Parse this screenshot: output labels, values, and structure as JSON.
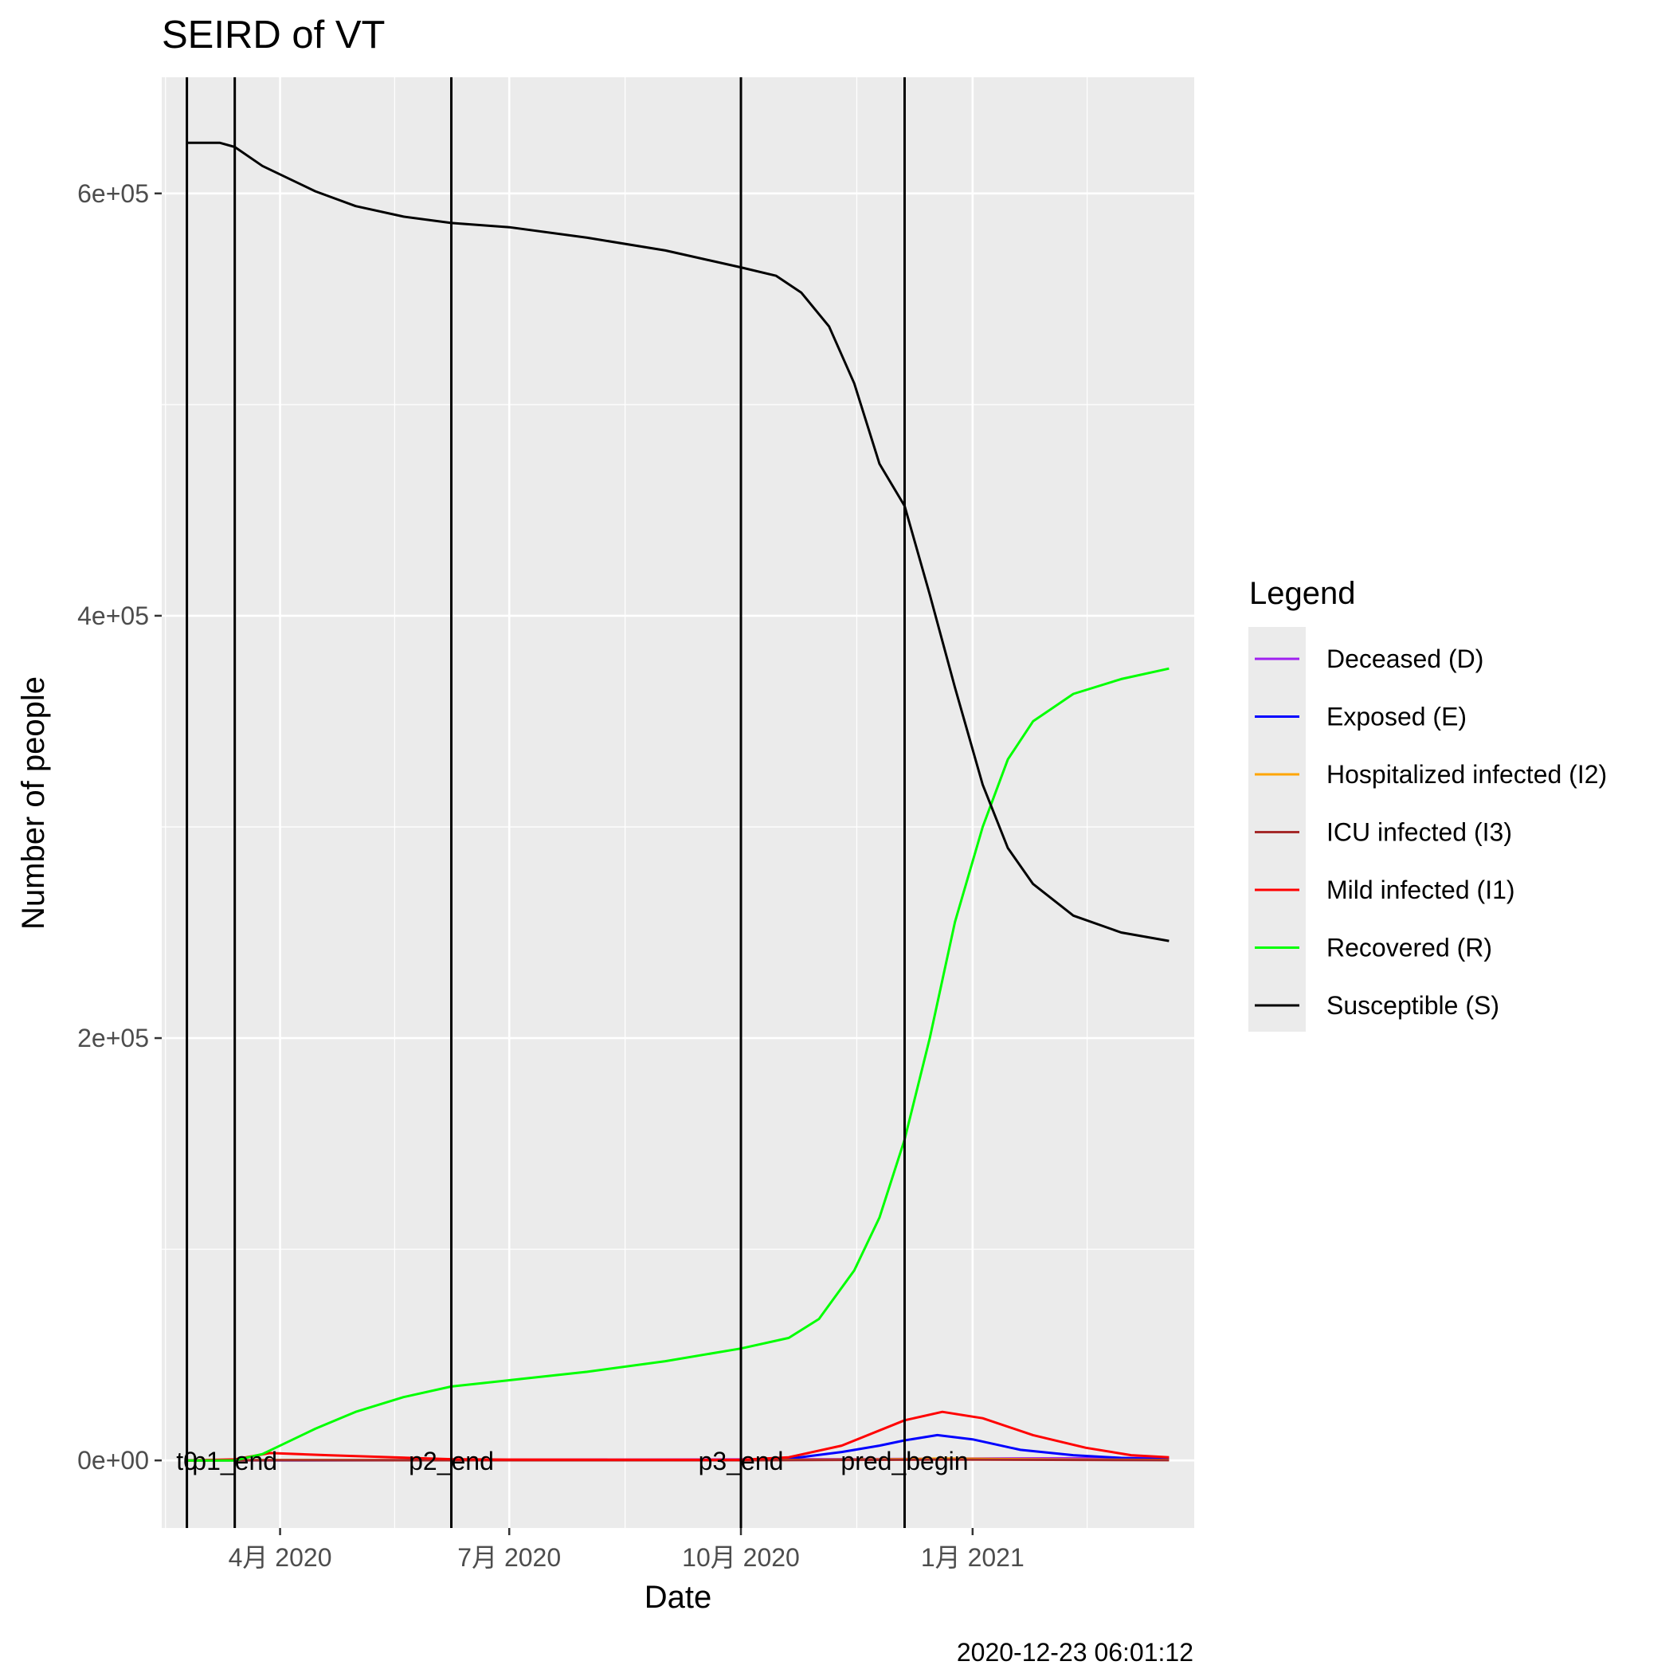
{
  "chart_data": {
    "type": "line",
    "title": "SEIRD of VT",
    "xlabel": "Date",
    "ylabel": "Number of people",
    "caption": "2020-12-23 06:01:12",
    "x_axis": {
      "type": "date",
      "range": [
        "2020-02-14",
        "2021-03-30"
      ],
      "ticks": [
        {
          "date": "2020-04-01",
          "label": "4月 2020"
        },
        {
          "date": "2020-07-01",
          "label": "7月 2020"
        },
        {
          "date": "2020-10-01",
          "label": "10月 2020"
        },
        {
          "date": "2021-01-01",
          "label": "1月 2021"
        }
      ]
    },
    "y_axis": {
      "range": [
        -32000,
        655000
      ],
      "ticks": [
        {
          "value": 0,
          "label": "0e+00"
        },
        {
          "value": 200000,
          "label": "2e+05"
        },
        {
          "value": 400000,
          "label": "4e+05"
        },
        {
          "value": 600000,
          "label": "6e+05"
        }
      ]
    },
    "grid": true,
    "legend": {
      "title": "Legend",
      "position": "right"
    },
    "vlines": [
      {
        "date": "2020-02-24",
        "label": "t0"
      },
      {
        "date": "2020-03-14",
        "label": "p1_end"
      },
      {
        "date": "2020-06-08",
        "label": "p2_end"
      },
      {
        "date": "2020-10-01",
        "label": "p3_end"
      },
      {
        "date": "2020-12-05",
        "label": "pred_begin"
      }
    ],
    "series": [
      {
        "name": "Deceased (D)",
        "color": "#a020f0",
        "points": [
          [
            "2020-02-24",
            0
          ],
          [
            "2020-04-01",
            100
          ],
          [
            "2020-07-01",
            300
          ],
          [
            "2020-10-01",
            500
          ],
          [
            "2020-12-05",
            700
          ],
          [
            "2021-01-01",
            900
          ],
          [
            "2021-03-20",
            1200
          ]
        ]
      },
      {
        "name": "Exposed (E)",
        "color": "#0000ff",
        "points": [
          [
            "2020-02-24",
            0
          ],
          [
            "2020-10-01",
            200
          ],
          [
            "2020-10-20",
            800
          ],
          [
            "2020-11-10",
            4000
          ],
          [
            "2020-11-25",
            7000
          ],
          [
            "2020-12-05",
            9500
          ],
          [
            "2020-12-18",
            12000
          ],
          [
            "2021-01-01",
            10000
          ],
          [
            "2021-01-20",
            5000
          ],
          [
            "2021-02-10",
            2500
          ],
          [
            "2021-03-01",
            1200
          ],
          [
            "2021-03-20",
            500
          ]
        ]
      },
      {
        "name": "Hospitalized infected (I2)",
        "color": "#ffa500",
        "points": [
          [
            "2020-02-24",
            0
          ],
          [
            "2020-04-01",
            200
          ],
          [
            "2020-07-01",
            100
          ],
          [
            "2020-10-01",
            100
          ],
          [
            "2020-12-05",
            600
          ],
          [
            "2020-12-20",
            900
          ],
          [
            "2021-02-01",
            500
          ],
          [
            "2021-03-20",
            200
          ]
        ]
      },
      {
        "name": "ICU infected (I3)",
        "color": "#a52a2a",
        "points": [
          [
            "2020-02-24",
            0
          ],
          [
            "2020-04-01",
            100
          ],
          [
            "2020-07-01",
            50
          ],
          [
            "2020-10-01",
            50
          ],
          [
            "2020-12-05",
            300
          ],
          [
            "2020-12-20",
            400
          ],
          [
            "2021-02-01",
            250
          ],
          [
            "2021-03-20",
            100
          ]
        ]
      },
      {
        "name": "Mild infected (I1)",
        "color": "#ff0000",
        "points": [
          [
            "2020-02-24",
            0
          ],
          [
            "2020-03-14",
            500
          ],
          [
            "2020-03-28",
            3500
          ],
          [
            "2020-04-20",
            2500
          ],
          [
            "2020-06-08",
            600
          ],
          [
            "2020-07-01",
            400
          ],
          [
            "2020-10-01",
            300
          ],
          [
            "2020-10-20",
            1500
          ],
          [
            "2020-11-10",
            7000
          ],
          [
            "2020-12-05",
            19000
          ],
          [
            "2020-12-20",
            23000
          ],
          [
            "2021-01-05",
            20000
          ],
          [
            "2021-01-25",
            12000
          ],
          [
            "2021-02-15",
            6000
          ],
          [
            "2021-03-05",
            2500
          ],
          [
            "2021-03-20",
            1500
          ]
        ]
      },
      {
        "name": "Recovered (R)",
        "color": "#00ff00",
        "points": [
          [
            "2020-02-24",
            0
          ],
          [
            "2020-03-14",
            0
          ],
          [
            "2020-03-25",
            3000
          ],
          [
            "2020-04-15",
            15000
          ],
          [
            "2020-05-01",
            23000
          ],
          [
            "2020-05-20",
            30000
          ],
          [
            "2020-06-08",
            35000
          ],
          [
            "2020-07-01",
            38000
          ],
          [
            "2020-08-01",
            42000
          ],
          [
            "2020-09-01",
            47000
          ],
          [
            "2020-10-01",
            53000
          ],
          [
            "2020-10-20",
            58000
          ],
          [
            "2020-11-01",
            67000
          ],
          [
            "2020-11-15",
            90000
          ],
          [
            "2020-11-25",
            115000
          ],
          [
            "2020-12-05",
            152000
          ],
          [
            "2020-12-15",
            200000
          ],
          [
            "2020-12-25",
            255000
          ],
          [
            "2021-01-05",
            300000
          ],
          [
            "2021-01-15",
            332000
          ],
          [
            "2021-01-25",
            350000
          ],
          [
            "2021-02-10",
            363000
          ],
          [
            "2021-03-01",
            370000
          ],
          [
            "2021-03-20",
            375000
          ]
        ]
      },
      {
        "name": "Susceptible (S)",
        "color": "#000000",
        "points": [
          [
            "2020-02-24",
            624000
          ],
          [
            "2020-03-08",
            624000
          ],
          [
            "2020-03-14",
            622000
          ],
          [
            "2020-03-25",
            613000
          ],
          [
            "2020-04-15",
            601000
          ],
          [
            "2020-05-01",
            594000
          ],
          [
            "2020-05-20",
            589000
          ],
          [
            "2020-06-08",
            586000
          ],
          [
            "2020-07-01",
            584000
          ],
          [
            "2020-08-01",
            579000
          ],
          [
            "2020-09-01",
            573000
          ],
          [
            "2020-10-01",
            565000
          ],
          [
            "2020-10-15",
            561000
          ],
          [
            "2020-10-25",
            553000
          ],
          [
            "2020-11-05",
            537000
          ],
          [
            "2020-11-15",
            510000
          ],
          [
            "2020-11-25",
            472000
          ],
          [
            "2020-12-05",
            452000
          ],
          [
            "2020-12-15",
            410000
          ],
          [
            "2020-12-25",
            366000
          ],
          [
            "2021-01-05",
            320000
          ],
          [
            "2021-01-15",
            290000
          ],
          [
            "2021-01-25",
            273000
          ],
          [
            "2021-02-10",
            258000
          ],
          [
            "2021-03-01",
            250000
          ],
          [
            "2021-03-20",
            246000
          ]
        ]
      }
    ]
  }
}
